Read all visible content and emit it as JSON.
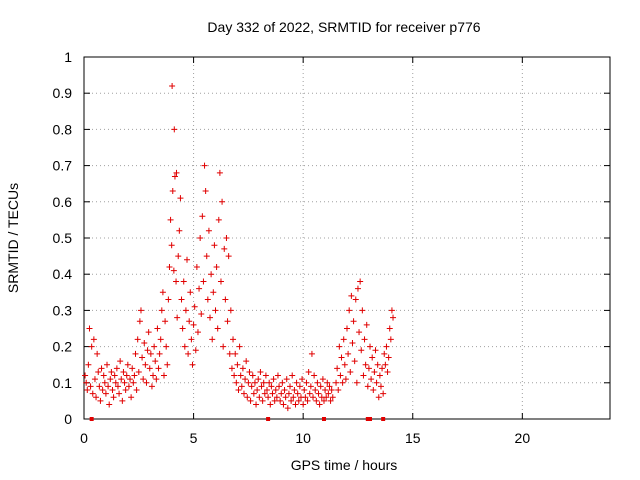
{
  "chart_data": {
    "type": "scatter",
    "title": "Day 332 of 2022, SRMTID for receiver p776",
    "xlabel": "GPS time / hours",
    "ylabel": "SRMTID / TECUs",
    "xlim": [
      0,
      24
    ],
    "ylim": [
      0,
      1
    ],
    "xticks": [
      0,
      5,
      10,
      15,
      20
    ],
    "yticks": [
      0,
      0.1,
      0.2,
      0.3,
      0.4,
      0.5,
      0.6,
      0.7,
      0.8,
      0.9,
      1
    ],
    "ytick_labels": [
      "0",
      "0.1",
      "0.2",
      "0.3",
      "0.4",
      "0.5",
      "0.6",
      "0.7",
      "0.8",
      "0.9",
      "1"
    ],
    "grid": true,
    "marker": "plus",
    "color": "#e00000",
    "series": [
      {
        "name": "SRMTID",
        "points": [
          [
            0.05,
            0.12
          ],
          [
            0.1,
            0.1
          ],
          [
            0.15,
            0.08
          ],
          [
            0.2,
            0.15
          ],
          [
            0.25,
            0.25
          ],
          [
            0.3,
            0.09
          ],
          [
            0.35,
            0.2
          ],
          [
            0.4,
            0.07
          ],
          [
            0.45,
            0.22
          ],
          [
            0.5,
            0.11
          ],
          [
            0.55,
            0.06
          ],
          [
            0.6,
            0.18
          ],
          [
            0.65,
            0.13
          ],
          [
            0.7,
            0.09
          ],
          [
            0.75,
            0.05
          ],
          [
            0.8,
            0.14
          ],
          [
            0.85,
            0.08
          ],
          [
            0.9,
            0.12
          ],
          [
            0.95,
            0.1
          ],
          [
            1.0,
            0.07
          ],
          [
            1.05,
            0.15
          ],
          [
            1.1,
            0.09
          ],
          [
            1.15,
            0.04
          ],
          [
            1.2,
            0.11
          ],
          [
            1.25,
            0.13
          ],
          [
            1.3,
            0.08
          ],
          [
            1.35,
            0.06
          ],
          [
            1.4,
            0.12
          ],
          [
            1.45,
            0.1
          ],
          [
            1.5,
            0.14
          ],
          [
            1.55,
            0.09
          ],
          [
            1.6,
            0.07
          ],
          [
            1.65,
            0.16
          ],
          [
            1.7,
            0.11
          ],
          [
            1.75,
            0.05
          ],
          [
            1.8,
            0.13
          ],
          [
            1.85,
            0.1
          ],
          [
            1.9,
            0.08
          ],
          [
            1.95,
            0.12
          ],
          [
            2.0,
            0.15
          ],
          [
            2.05,
            0.09
          ],
          [
            2.1,
            0.11
          ],
          [
            2.15,
            0.06
          ],
          [
            2.2,
            0.14
          ],
          [
            2.25,
            0.1
          ],
          [
            2.3,
            0.12
          ],
          [
            2.35,
            0.18
          ],
          [
            2.4,
            0.08
          ],
          [
            2.45,
            0.22
          ],
          [
            2.5,
            0.13
          ],
          [
            2.55,
            0.27
          ],
          [
            2.6,
            0.3
          ],
          [
            2.65,
            0.17
          ],
          [
            2.7,
            0.11
          ],
          [
            2.75,
            0.21
          ],
          [
            2.8,
            0.15
          ],
          [
            2.85,
            0.1
          ],
          [
            2.9,
            0.19
          ],
          [
            2.95,
            0.24
          ],
          [
            3.0,
            0.14
          ],
          [
            3.05,
            0.18
          ],
          [
            3.1,
            0.09
          ],
          [
            3.15,
            0.12
          ],
          [
            3.2,
            0.2
          ],
          [
            3.25,
            0.16
          ],
          [
            3.3,
            0.11
          ],
          [
            3.35,
            0.25
          ],
          [
            3.4,
            0.14
          ],
          [
            3.45,
            0.18
          ],
          [
            3.5,
            0.22
          ],
          [
            3.55,
            0.3
          ],
          [
            3.6,
            0.35
          ],
          [
            3.65,
            0.12
          ],
          [
            3.7,
            0.27
          ],
          [
            3.75,
            0.2
          ],
          [
            3.8,
            0.15
          ],
          [
            3.85,
            0.33
          ],
          [
            3.9,
            0.42
          ],
          [
            3.95,
            0.55
          ],
          [
            4.0,
            0.48
          ],
          [
            4.02,
            0.92
          ],
          [
            4.05,
            0.63
          ],
          [
            4.1,
            0.41
          ],
          [
            4.12,
            0.8
          ],
          [
            4.15,
            0.67
          ],
          [
            4.2,
            0.38
          ],
          [
            4.22,
            0.68
          ],
          [
            4.25,
            0.28
          ],
          [
            4.3,
            0.45
          ],
          [
            4.35,
            0.52
          ],
          [
            4.4,
            0.61
          ],
          [
            4.45,
            0.33
          ],
          [
            4.5,
            0.25
          ],
          [
            4.55,
            0.38
          ],
          [
            4.6,
            0.2
          ],
          [
            4.65,
            0.3
          ],
          [
            4.7,
            0.44
          ],
          [
            4.75,
            0.18
          ],
          [
            4.8,
            0.27
          ],
          [
            4.85,
            0.35
          ],
          [
            4.9,
            0.22
          ],
          [
            4.95,
            0.15
          ],
          [
            5.0,
            0.26
          ],
          [
            5.05,
            0.31
          ],
          [
            5.1,
            0.19
          ],
          [
            5.15,
            0.42
          ],
          [
            5.2,
            0.24
          ],
          [
            5.25,
            0.36
          ],
          [
            5.3,
            0.5
          ],
          [
            5.35,
            0.29
          ],
          [
            5.4,
            0.56
          ],
          [
            5.45,
            0.38
          ],
          [
            5.5,
            0.7
          ],
          [
            5.55,
            0.63
          ],
          [
            5.6,
            0.45
          ],
          [
            5.65,
            0.33
          ],
          [
            5.7,
            0.52
          ],
          [
            5.75,
            0.28
          ],
          [
            5.8,
            0.4
          ],
          [
            5.85,
            0.22
          ],
          [
            5.9,
            0.35
          ],
          [
            5.95,
            0.48
          ],
          [
            6.0,
            0.3
          ],
          [
            6.05,
            0.42
          ],
          [
            6.1,
            0.25
          ],
          [
            6.15,
            0.55
          ],
          [
            6.2,
            0.68
          ],
          [
            6.25,
            0.38
          ],
          [
            6.3,
            0.6
          ],
          [
            6.35,
            0.2
          ],
          [
            6.4,
            0.47
          ],
          [
            6.45,
            0.33
          ],
          [
            6.5,
            0.5
          ],
          [
            6.55,
            0.27
          ],
          [
            6.6,
            0.45
          ],
          [
            6.65,
            0.18
          ],
          [
            6.7,
            0.3
          ],
          [
            6.75,
            0.14
          ],
          [
            6.8,
            0.22
          ],
          [
            6.85,
            0.12
          ],
          [
            6.9,
            0.18
          ],
          [
            6.95,
            0.1
          ],
          [
            7.0,
            0.15
          ],
          [
            7.05,
            0.08
          ],
          [
            7.1,
            0.2
          ],
          [
            7.15,
            0.12
          ],
          [
            7.2,
            0.09
          ],
          [
            7.25,
            0.14
          ],
          [
            7.3,
            0.07
          ],
          [
            7.35,
            0.11
          ],
          [
            7.4,
            0.16
          ],
          [
            7.45,
            0.06
          ],
          [
            7.5,
            0.1
          ],
          [
            7.55,
            0.13
          ],
          [
            7.6,
            0.05
          ],
          [
            7.65,
            0.09
          ],
          [
            7.7,
            0.12
          ],
          [
            7.75,
            0.07
          ],
          [
            7.8,
            0.1
          ],
          [
            7.85,
            0.04
          ],
          [
            7.9,
            0.08
          ],
          [
            7.95,
            0.11
          ],
          [
            8.0,
            0.06
          ],
          [
            8.05,
            0.13
          ],
          [
            8.1,
            0.09
          ],
          [
            8.15,
            0.05
          ],
          [
            8.2,
            0.1
          ],
          [
            8.25,
            0.07
          ],
          [
            8.3,
            0.12
          ],
          [
            8.35,
            0.08
          ],
          [
            8.4,
            0.06
          ],
          [
            8.45,
            0.1
          ],
          [
            8.5,
            0.04
          ],
          [
            8.55,
            0.09
          ],
          [
            8.6,
            0.07
          ],
          [
            8.65,
            0.11
          ],
          [
            8.7,
            0.05
          ],
          [
            8.75,
            0.08
          ],
          [
            8.8,
            0.06
          ],
          [
            8.85,
            0.12
          ],
          [
            8.9,
            0.09
          ],
          [
            8.95,
            0.05
          ],
          [
            9.0,
            0.07
          ],
          [
            9.05,
            0.1
          ],
          [
            9.1,
            0.04
          ],
          [
            9.15,
            0.08
          ],
          [
            9.2,
            0.06
          ],
          [
            9.25,
            0.11
          ],
          [
            9.3,
            0.03
          ],
          [
            9.35,
            0.07
          ],
          [
            9.4,
            0.09
          ],
          [
            9.45,
            0.05
          ],
          [
            9.5,
            0.12
          ],
          [
            9.55,
            0.06
          ],
          [
            9.6,
            0.08
          ],
          [
            9.65,
            0.04
          ],
          [
            9.7,
            0.1
          ],
          [
            9.75,
            0.07
          ],
          [
            9.8,
            0.05
          ],
          [
            9.85,
            0.09
          ],
          [
            9.9,
            0.06
          ],
          [
            9.95,
            0.11
          ],
          [
            10.0,
            0.04
          ],
          [
            10.05,
            0.08
          ],
          [
            10.1,
            0.06
          ],
          [
            10.15,
            0.1
          ],
          [
            10.2,
            0.05
          ],
          [
            10.25,
            0.13
          ],
          [
            10.3,
            0.07
          ],
          [
            10.35,
            0.09
          ],
          [
            10.4,
            0.18
          ],
          [
            10.45,
            0.06
          ],
          [
            10.5,
            0.12
          ],
          [
            10.55,
            0.08
          ],
          [
            10.6,
            0.05
          ],
          [
            10.65,
            0.1
          ],
          [
            10.7,
            0.07
          ],
          [
            10.75,
            0.04
          ],
          [
            10.8,
            0.09
          ],
          [
            10.85,
            0.06
          ],
          [
            10.9,
            0.11
          ],
          [
            10.95,
            0.05
          ],
          [
            11.0,
            0.08
          ],
          [
            11.05,
            0.06
          ],
          [
            11.1,
            0.1
          ],
          [
            11.15,
            0.07
          ],
          [
            11.2,
            0.09
          ],
          [
            11.25,
            0.05
          ],
          [
            11.3,
            0.08
          ],
          [
            11.35,
            0.06
          ],
          [
            11.5,
            0.1
          ],
          [
            11.55,
            0.14
          ],
          [
            11.6,
            0.08
          ],
          [
            11.65,
            0.2
          ],
          [
            11.7,
            0.12
          ],
          [
            11.75,
            0.17
          ],
          [
            11.8,
            0.1
          ],
          [
            11.85,
            0.22
          ],
          [
            11.9,
            0.15
          ],
          [
            11.95,
            0.11
          ],
          [
            12.0,
            0.25
          ],
          [
            12.05,
            0.18
          ],
          [
            12.1,
            0.3
          ],
          [
            12.15,
            0.13
          ],
          [
            12.2,
            0.34
          ],
          [
            12.25,
            0.21
          ],
          [
            12.3,
            0.27
          ],
          [
            12.35,
            0.16
          ],
          [
            12.4,
            0.33
          ],
          [
            12.45,
            0.1
          ],
          [
            12.5,
            0.36
          ],
          [
            12.55,
            0.24
          ],
          [
            12.6,
            0.38
          ],
          [
            12.65,
            0.19
          ],
          [
            12.7,
            0.3
          ],
          [
            12.75,
            0.12
          ],
          [
            12.8,
            0.22
          ],
          [
            12.85,
            0.15
          ],
          [
            12.9,
            0.26
          ],
          [
            12.95,
            0.09
          ],
          [
            13.0,
            0.14
          ],
          [
            13.05,
            0.2
          ],
          [
            13.1,
            0.11
          ],
          [
            13.15,
            0.17
          ],
          [
            13.2,
            0.08
          ],
          [
            13.25,
            0.13
          ],
          [
            13.3,
            0.19
          ],
          [
            13.35,
            0.1
          ],
          [
            13.4,
            0.15
          ],
          [
            13.45,
            0.06
          ],
          [
            13.5,
            0.12
          ],
          [
            13.55,
            0.09
          ],
          [
            13.6,
            0.14
          ],
          [
            13.65,
            0.07
          ],
          [
            13.7,
            0.18
          ],
          [
            13.75,
            0.15
          ],
          [
            13.8,
            0.2
          ],
          [
            13.85,
            0.13
          ],
          [
            13.9,
            0.17
          ],
          [
            13.95,
            0.25
          ],
          [
            14.0,
            0.22
          ],
          [
            14.05,
            0.3
          ],
          [
            14.1,
            0.28
          ]
        ],
        "zero_markers": [
          0.35,
          8.4,
          10.95,
          12.95,
          13.05,
          13.65
        ]
      }
    ]
  }
}
